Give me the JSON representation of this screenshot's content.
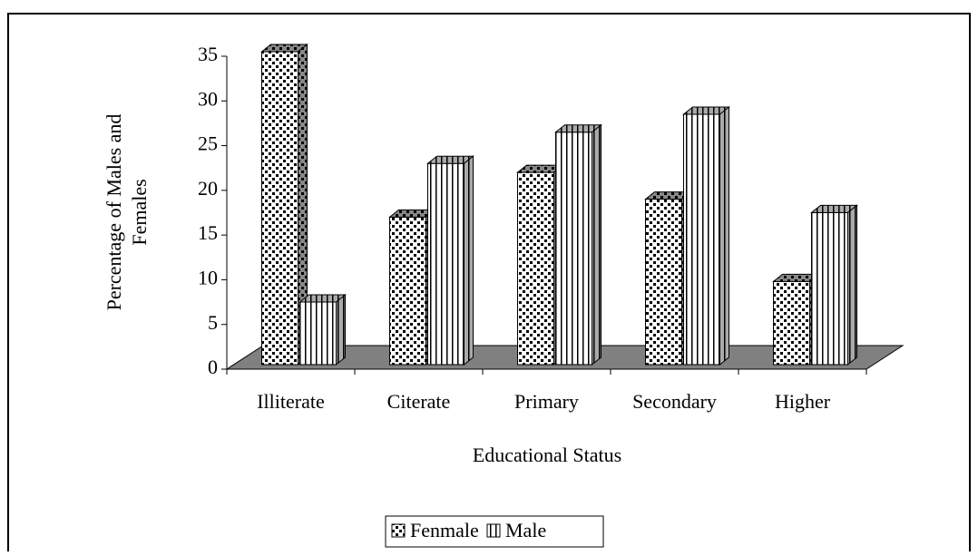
{
  "chart_data": {
    "type": "bar3d",
    "x_label": "Educational Status",
    "y_label": [
      "Percentage of Males and",
      "Females"
    ],
    "categories": [
      "Illiterate",
      "Citerate",
      "Primary",
      "Secondary",
      "Higher"
    ],
    "series": [
      {
        "name": "Fenmale",
        "color": "#000000",
        "values": [
          35,
          16.5,
          21.5,
          18.5,
          9.3
        ]
      },
      {
        "name": "Male",
        "color": "#000000",
        "values": [
          7,
          22.5,
          26,
          28,
          17
        ]
      }
    ],
    "ylim": [
      0,
      35
    ],
    "yticks": [
      0,
      5,
      10,
      15,
      20,
      25,
      30,
      35
    ],
    "legend": "bottom"
  }
}
